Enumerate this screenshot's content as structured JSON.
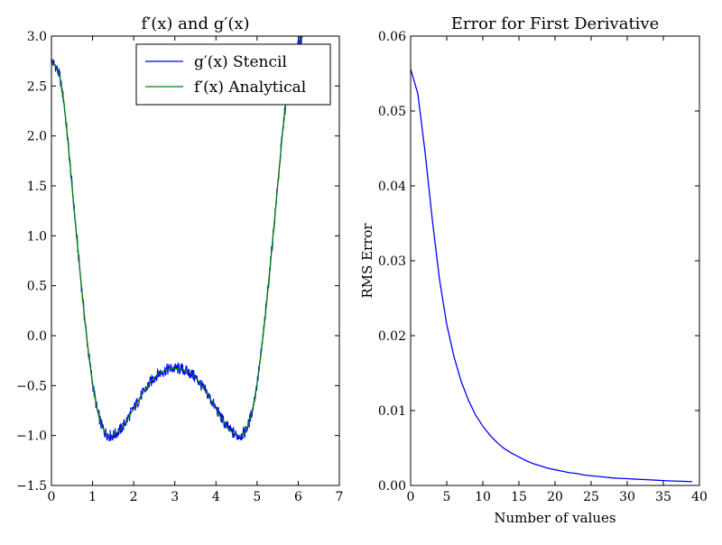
{
  "figure": {
    "background": "#ffffff"
  },
  "colors": {
    "blue": "#0000ff",
    "green": "#008000",
    "axis": "#000000"
  },
  "chart_data": [
    {
      "type": "line",
      "title": "f′(x) and g′(x)",
      "xlabel": "",
      "ylabel": "",
      "xlim": [
        0,
        7
      ],
      "ylim": [
        -1.5,
        3.0
      ],
      "xticks": [
        0,
        1,
        2,
        3,
        4,
        5,
        6,
        7
      ],
      "xtick_labels": [
        "0",
        "1",
        "2",
        "3",
        "4",
        "5",
        "6",
        "7"
      ],
      "yticks": [
        -1.5,
        -1.0,
        -0.5,
        0.0,
        0.5,
        1.0,
        1.5,
        2.0,
        2.5,
        3.0
      ],
      "ytick_labels": [
        "−1.5",
        "−1.0",
        "−0.5",
        "0.0",
        "0.5",
        "1.0",
        "1.5",
        "2.0",
        "2.5",
        "3.0"
      ],
      "legend": {
        "location": "top-right"
      },
      "series": [
        {
          "name": "g′(x) Stencil",
          "color": "#0000ff",
          "noisy": true,
          "x": [
            0.0,
            0.1,
            0.2,
            0.3,
            0.4,
            0.5,
            0.6,
            0.7,
            0.8,
            0.9,
            1.0,
            1.1,
            1.2,
            1.3,
            1.4,
            1.5,
            1.6,
            1.7,
            1.8,
            1.9,
            2.0,
            2.1,
            2.2,
            2.3,
            2.4,
            2.5,
            2.6,
            2.7,
            2.8,
            2.9,
            3.0,
            3.1,
            3.2,
            3.3,
            3.4,
            3.5,
            3.6,
            3.7,
            3.8,
            3.9,
            4.0,
            4.1,
            4.2,
            4.3,
            4.4,
            4.5,
            4.6,
            4.7,
            4.8,
            4.9,
            5.0,
            5.1,
            5.2,
            5.3,
            5.4,
            5.5,
            5.6,
            5.7,
            5.8,
            5.9,
            6.0,
            6.1
          ],
          "y": [
            2.75,
            2.7,
            2.6,
            2.35,
            1.95,
            1.5,
            1.05,
            0.62,
            0.2,
            -0.17,
            -0.48,
            -0.72,
            -0.88,
            -0.97,
            -1.0,
            -1.0,
            -0.97,
            -0.93,
            -0.87,
            -0.8,
            -0.73,
            -0.66,
            -0.59,
            -0.53,
            -0.47,
            -0.42,
            -0.38,
            -0.36,
            -0.34,
            -0.33,
            -0.33,
            -0.33,
            -0.34,
            -0.36,
            -0.38,
            -0.42,
            -0.47,
            -0.53,
            -0.59,
            -0.66,
            -0.73,
            -0.8,
            -0.87,
            -0.93,
            -0.97,
            -1.0,
            -1.0,
            -0.97,
            -0.88,
            -0.72,
            -0.48,
            -0.17,
            0.2,
            0.62,
            1.05,
            1.5,
            1.95,
            2.35,
            2.6,
            2.75,
            2.9,
            3.0
          ]
        },
        {
          "name": "f′(x) Analytical",
          "color": "#008000",
          "noisy": false,
          "x": [
            0.0,
            0.1,
            0.2,
            0.3,
            0.4,
            0.5,
            0.6,
            0.7,
            0.8,
            0.9,
            1.0,
            1.1,
            1.2,
            1.3,
            1.4,
            1.5,
            1.6,
            1.7,
            1.8,
            1.9,
            2.0,
            2.1,
            2.2,
            2.3,
            2.4,
            2.5,
            2.6,
            2.7,
            2.8,
            2.9,
            3.0,
            3.1,
            3.2,
            3.3,
            3.4,
            3.5,
            3.6,
            3.7,
            3.8,
            3.9,
            4.0,
            4.1,
            4.2,
            4.3,
            4.4,
            4.5,
            4.6,
            4.7,
            4.8,
            4.9,
            5.0,
            5.1,
            5.2,
            5.3,
            5.4,
            5.5,
            5.6,
            5.7,
            5.8,
            5.9,
            6.0,
            6.1
          ],
          "y": [
            2.75,
            2.7,
            2.6,
            2.35,
            1.95,
            1.5,
            1.05,
            0.62,
            0.2,
            -0.17,
            -0.48,
            -0.72,
            -0.88,
            -0.97,
            -1.0,
            -1.0,
            -0.97,
            -0.93,
            -0.87,
            -0.8,
            -0.73,
            -0.66,
            -0.59,
            -0.53,
            -0.47,
            -0.42,
            -0.38,
            -0.36,
            -0.34,
            -0.33,
            -0.33,
            -0.33,
            -0.34,
            -0.36,
            -0.38,
            -0.42,
            -0.47,
            -0.53,
            -0.59,
            -0.66,
            -0.73,
            -0.8,
            -0.87,
            -0.93,
            -0.97,
            -1.0,
            -1.0,
            -0.97,
            -0.88,
            -0.72,
            -0.48,
            -0.17,
            0.2,
            0.62,
            1.05,
            1.5,
            1.95,
            2.35,
            2.6,
            2.75,
            2.9,
            3.0
          ]
        }
      ]
    },
    {
      "type": "line",
      "title": "Error for First Derivative",
      "xlabel": "Number of values",
      "ylabel": "RMS Error",
      "xlim": [
        0,
        40
      ],
      "ylim": [
        0.0,
        0.06
      ],
      "xticks": [
        0,
        5,
        10,
        15,
        20,
        25,
        30,
        35,
        40
      ],
      "xtick_labels": [
        "0",
        "5",
        "10",
        "15",
        "20",
        "25",
        "30",
        "35",
        "40"
      ],
      "yticks": [
        0.0,
        0.01,
        0.02,
        0.03,
        0.04,
        0.05,
        0.06
      ],
      "ytick_labels": [
        "0.00",
        "0.01",
        "0.02",
        "0.03",
        "0.04",
        "0.05",
        "0.06"
      ],
      "series": [
        {
          "color": "#0000ff",
          "x": [
            0,
            1,
            2,
            3,
            4,
            5,
            6,
            7,
            8,
            9,
            10,
            11,
            12,
            13,
            14,
            15,
            16,
            17,
            18,
            19,
            20,
            21,
            22,
            23,
            24,
            25,
            26,
            27,
            28,
            29,
            30,
            31,
            32,
            33,
            34,
            35,
            36,
            37,
            38,
            39
          ],
          "y": [
            0.0556,
            0.0523,
            0.0445,
            0.0355,
            0.0275,
            0.0215,
            0.0172,
            0.0139,
            0.0114,
            0.0094,
            0.0079,
            0.0067,
            0.0057,
            0.0049,
            0.0043,
            0.0038,
            0.0033,
            0.0029,
            0.0026,
            0.0023,
            0.0021,
            0.0019,
            0.0017,
            0.0016,
            0.0014,
            0.0013,
            0.0012,
            0.0011,
            0.001,
            0.00095,
            0.0009,
            0.00085,
            0.0008,
            0.00075,
            0.0007,
            0.00065,
            0.0006,
            0.00057,
            0.00054,
            0.0005
          ]
        }
      ]
    }
  ]
}
